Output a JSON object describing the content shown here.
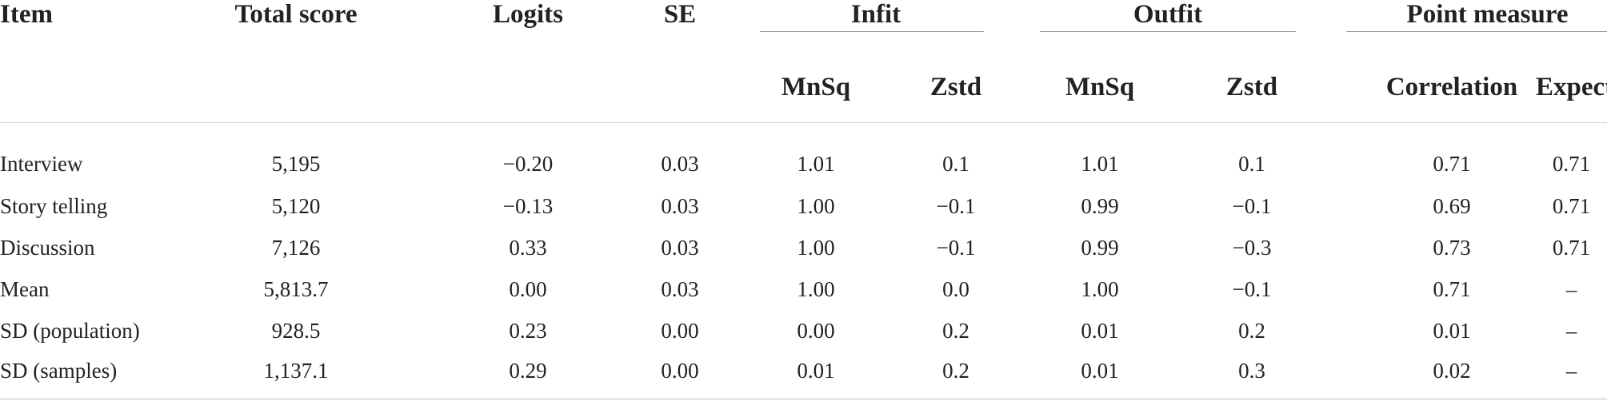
{
  "table": {
    "headers": {
      "item": "Item",
      "total_score": "Total score",
      "logits": "Logits",
      "se": "SE",
      "infit": "Infit",
      "outfit": "Outfit",
      "point_measure": "Point measure",
      "infit_mnsq": "MnSq",
      "infit_zstd": "Zstd",
      "outfit_mnsq": "MnSq",
      "outfit_zstd": "Zstd",
      "pm_correlation": "Correlation",
      "pm_expected": "Expected"
    },
    "rows": [
      {
        "item": "Interview",
        "total": "5,195",
        "logits": "−0.20",
        "se": "0.03",
        "infit_mnsq": "1.01",
        "infit_zstd": "0.1",
        "outfit_mnsq": "1.01",
        "outfit_zstd": "0.1",
        "correlation": "0.71",
        "expected": "0.71"
      },
      {
        "item": "Story telling",
        "total": "5,120",
        "logits": "−0.13",
        "se": "0.03",
        "infit_mnsq": "1.00",
        "infit_zstd": "−0.1",
        "outfit_mnsq": "0.99",
        "outfit_zstd": "−0.1",
        "correlation": "0.69",
        "expected": "0.71"
      },
      {
        "item": "Discussion",
        "total": "7,126",
        "logits": "0.33",
        "se": "0.03",
        "infit_mnsq": "1.00",
        "infit_zstd": "−0.1",
        "outfit_mnsq": "0.99",
        "outfit_zstd": "−0.3",
        "correlation": "0.73",
        "expected": "0.71"
      },
      {
        "item": "Mean",
        "total": "5,813.7",
        "logits": "0.00",
        "se": "0.03",
        "infit_mnsq": "1.00",
        "infit_zstd": "0.0",
        "outfit_mnsq": "1.00",
        "outfit_zstd": "−0.1",
        "correlation": "0.71",
        "expected": "–"
      },
      {
        "item": "SD (population)",
        "total": "928.5",
        "logits": "0.23",
        "se": "0.00",
        "infit_mnsq": "0.00",
        "infit_zstd": "0.2",
        "outfit_mnsq": "0.01",
        "outfit_zstd": "0.2",
        "correlation": "0.01",
        "expected": "–"
      },
      {
        "item": "SD (samples)",
        "total": "1,137.1",
        "logits": "0.29",
        "se": "0.00",
        "infit_mnsq": "0.01",
        "infit_zstd": "0.2",
        "outfit_mnsq": "0.01",
        "outfit_zstd": "0.3",
        "correlation": "0.02",
        "expected": "–"
      }
    ]
  }
}
